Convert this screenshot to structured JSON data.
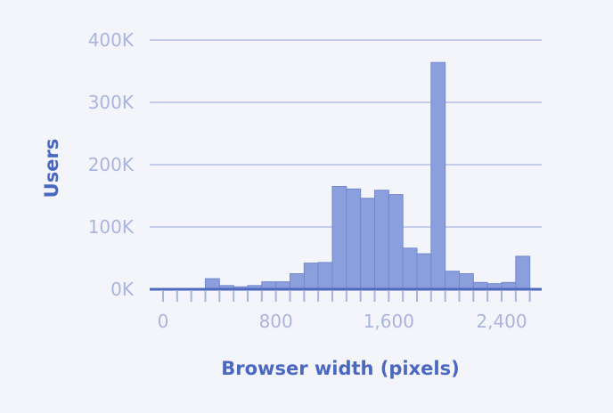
{
  "chart_data": {
    "type": "bar",
    "subtype": "histogram",
    "xlabel": "Browser width (pixels)",
    "ylabel": "Users",
    "xlim": [
      -80,
      2600
    ],
    "ylim": [
      0,
      400000
    ],
    "bin_width": 100,
    "x_ticks": [
      0,
      800,
      1600,
      2400
    ],
    "x_tick_labels": [
      "0",
      "800",
      "1,600",
      "2,400"
    ],
    "minor_x_tick_step": 100,
    "y_ticks": [
      0,
      100000,
      200000,
      300000,
      400000
    ],
    "y_tick_labels": [
      "0K",
      "100K",
      "200K",
      "300K",
      "400K"
    ],
    "grid": true,
    "bins": [
      {
        "x0": 0,
        "x1": 100,
        "value": 0
      },
      {
        "x0": 100,
        "x1": 200,
        "value": 0
      },
      {
        "x0": 200,
        "x1": 300,
        "value": 0
      },
      {
        "x0": 300,
        "x1": 400,
        "value": 17000
      },
      {
        "x0": 400,
        "x1": 500,
        "value": 6000
      },
      {
        "x0": 500,
        "x1": 600,
        "value": 4000
      },
      {
        "x0": 600,
        "x1": 700,
        "value": 6000
      },
      {
        "x0": 700,
        "x1": 800,
        "value": 12000
      },
      {
        "x0": 800,
        "x1": 900,
        "value": 12000
      },
      {
        "x0": 900,
        "x1": 1000,
        "value": 25000
      },
      {
        "x0": 1000,
        "x1": 1100,
        "value": 42000
      },
      {
        "x0": 1100,
        "x1": 1200,
        "value": 43000
      },
      {
        "x0": 1200,
        "x1": 1300,
        "value": 165000
      },
      {
        "x0": 1300,
        "x1": 1400,
        "value": 161000
      },
      {
        "x0": 1400,
        "x1": 1500,
        "value": 146000
      },
      {
        "x0": 1500,
        "x1": 1600,
        "value": 159000
      },
      {
        "x0": 1600,
        "x1": 1700,
        "value": 152000
      },
      {
        "x0": 1700,
        "x1": 1800,
        "value": 66000
      },
      {
        "x0": 1800,
        "x1": 1900,
        "value": 57000
      },
      {
        "x0": 1900,
        "x1": 2000,
        "value": 364000
      },
      {
        "x0": 2000,
        "x1": 2100,
        "value": 29000
      },
      {
        "x0": 2100,
        "x1": 2200,
        "value": 25000
      },
      {
        "x0": 2200,
        "x1": 2300,
        "value": 11000
      },
      {
        "x0": 2300,
        "x1": 2400,
        "value": 9000
      },
      {
        "x0": 2400,
        "x1": 2500,
        "value": 11000
      },
      {
        "x0": 2500,
        "x1": 2600,
        "value": 53000
      }
    ]
  }
}
